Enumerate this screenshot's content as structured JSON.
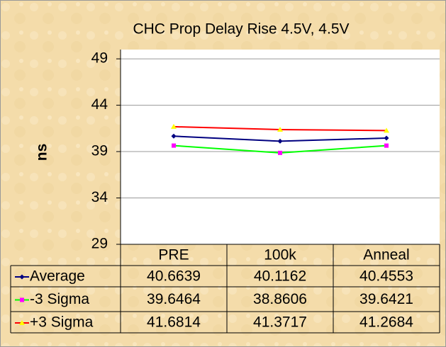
{
  "chart_data": {
    "type": "line",
    "title": "CHC Prop Delay Rise  4.5V, 4.5V",
    "y_label": "ns",
    "categories": [
      "PRE",
      "100k",
      "Anneal"
    ],
    "series": [
      {
        "name": "Average",
        "color": "#000080",
        "marker_color": "#000080",
        "marker": "diamond",
        "values": [
          40.6639,
          40.1162,
          40.4553
        ]
      },
      {
        "name": "-3 Sigma",
        "color": "#00ff00",
        "marker_color": "#ff00ff",
        "marker": "square",
        "values": [
          39.6464,
          38.8606,
          39.6421
        ]
      },
      {
        "name": "+3 Sigma",
        "color": "#ff0000",
        "marker_color": "#ffff00",
        "marker": "triangle",
        "values": [
          41.6814,
          41.3717,
          41.2684
        ]
      }
    ],
    "ylim": [
      29,
      50
    ],
    "yticks": [
      29,
      34,
      39,
      44,
      49
    ],
    "grid": true,
    "data_table": true
  }
}
